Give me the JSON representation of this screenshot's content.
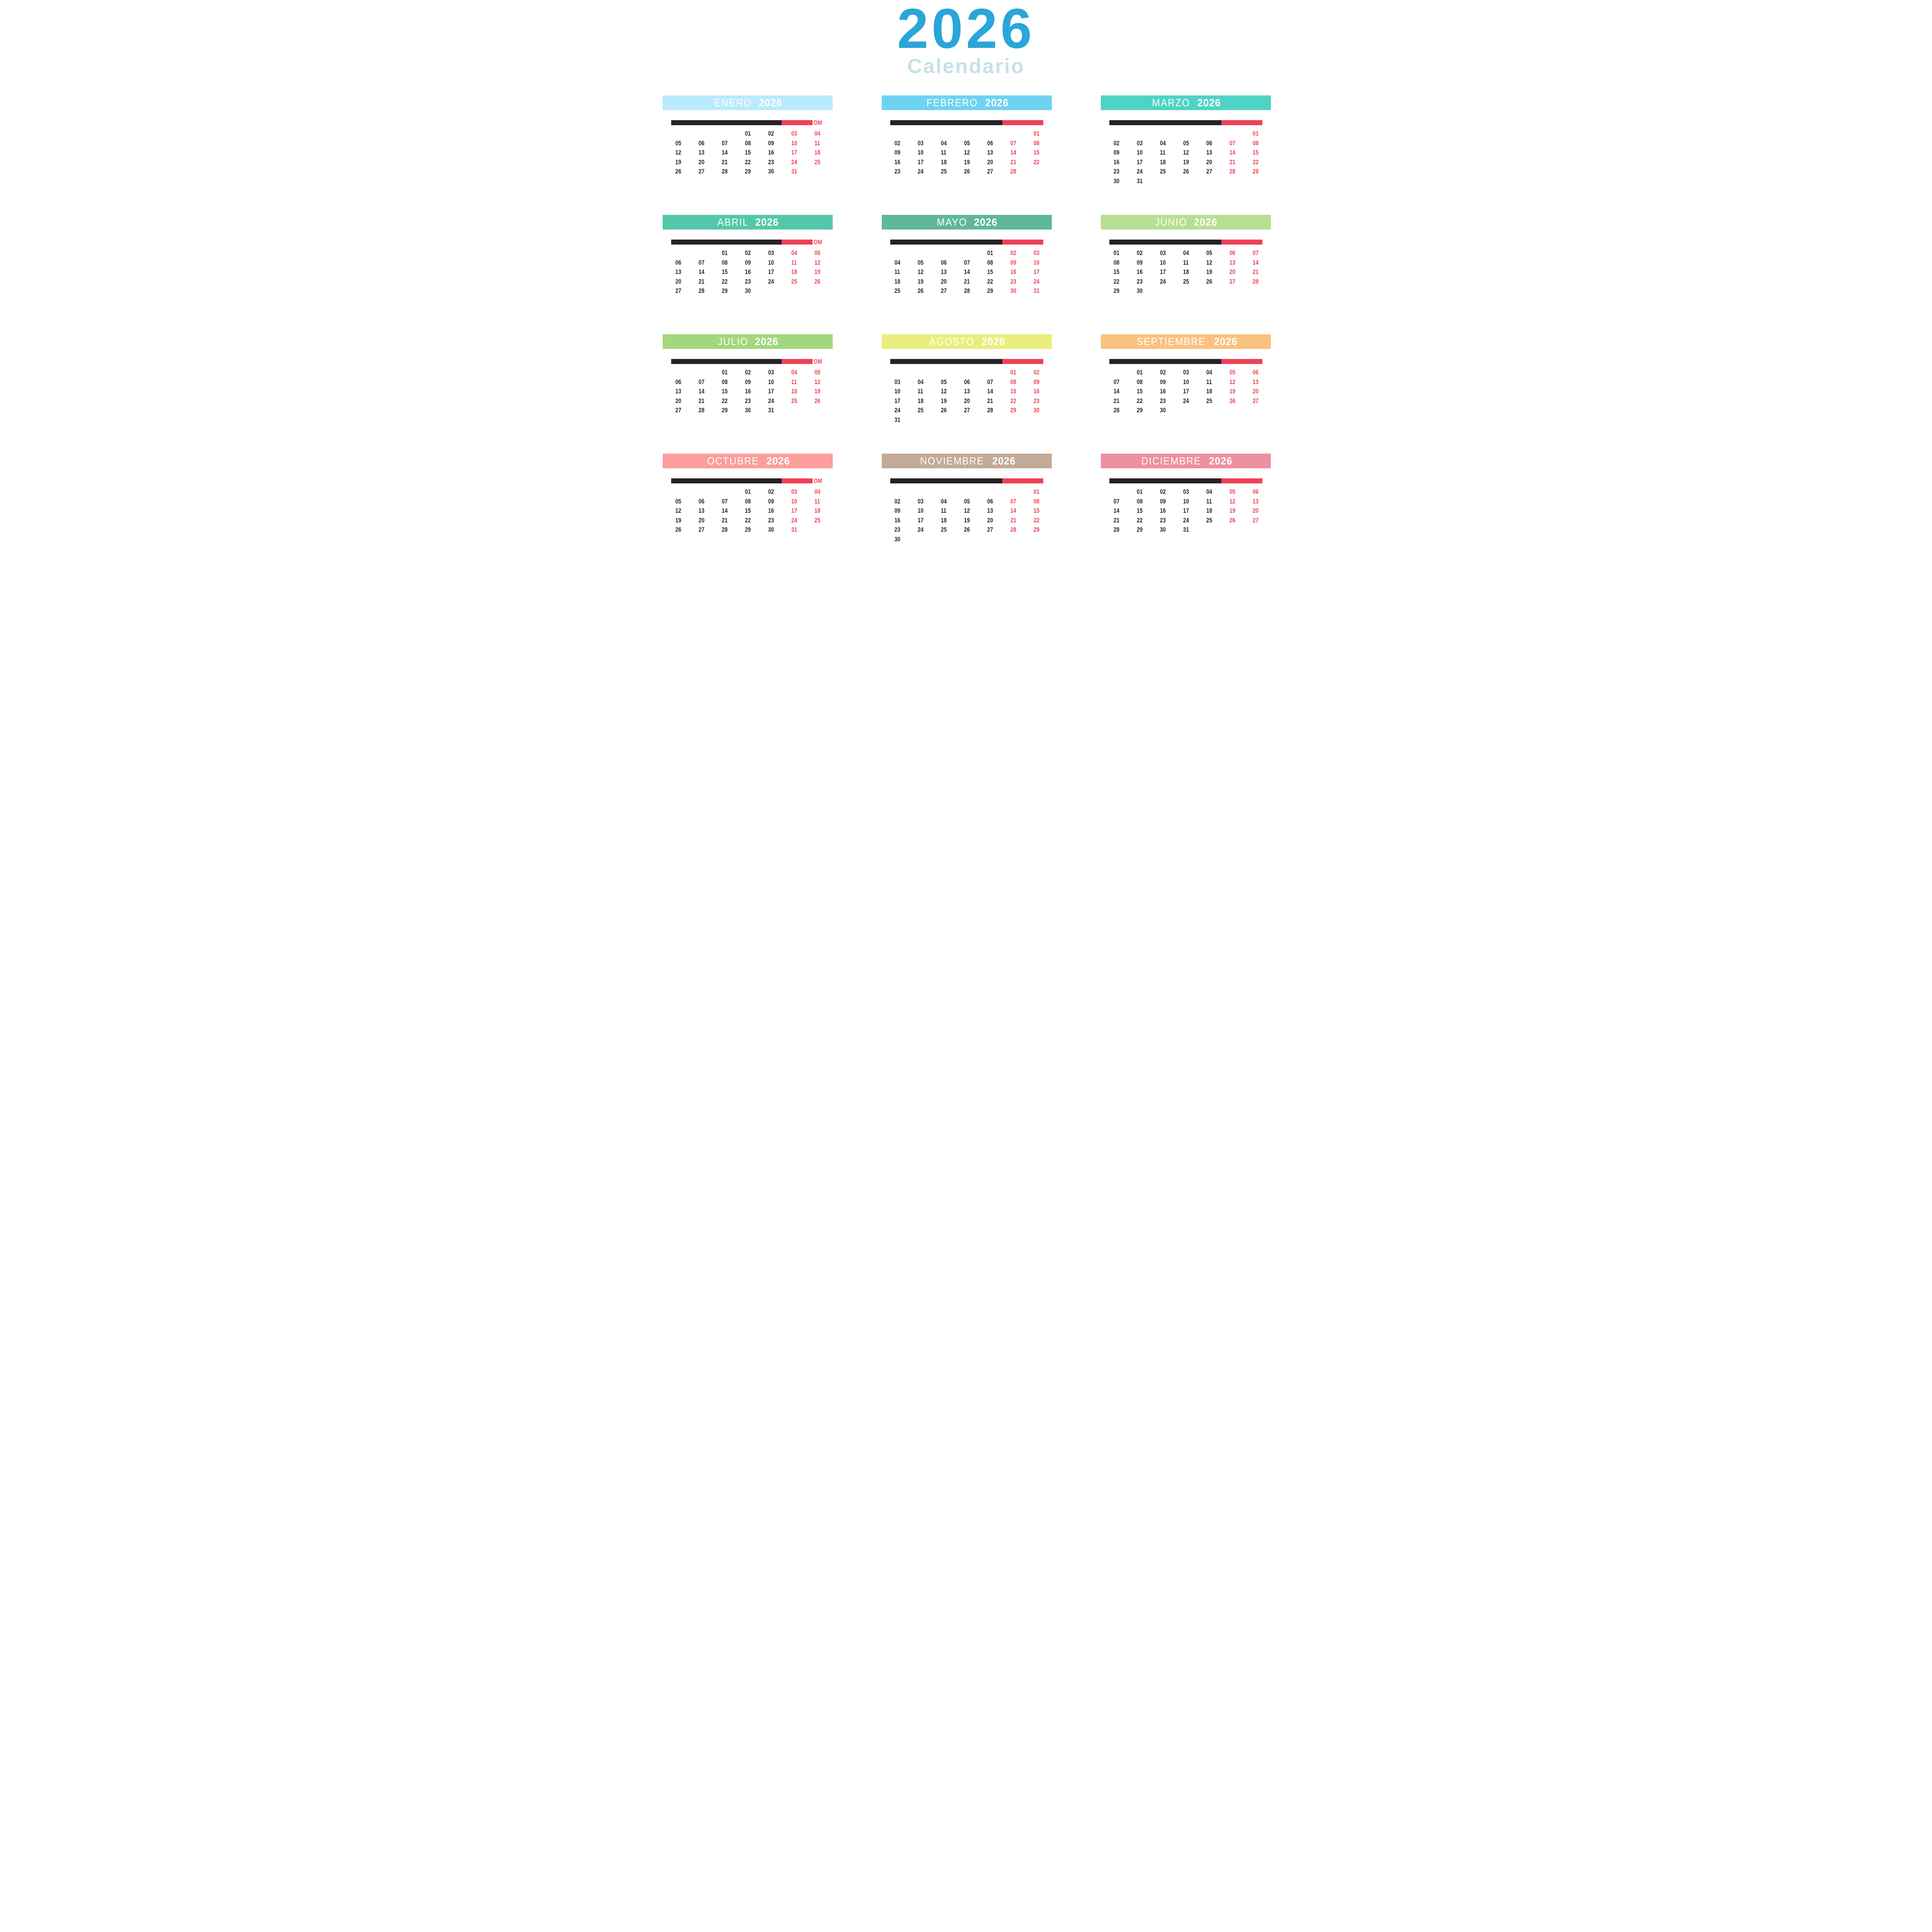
{
  "title": {
    "year": "2026",
    "subtitle": "Calendario"
  },
  "colors": {
    "title_year": "#2aa6d8",
    "title_subtitle": "#c7e1e5",
    "ink": "#29242a",
    "bar_black": "#262126",
    "weekend_red": "#ee4156",
    "header_text": "#ffffff",
    "background": "#ffffff"
  },
  "weekday_bar": {
    "overflow_label": "OM"
  },
  "months": [
    {
      "name": "ENERO",
      "year": "2026",
      "header_color": "#b9eafd",
      "bar_overflow": true,
      "weeks": [
        [
          "",
          "",
          "",
          "01",
          "02",
          "03",
          "04"
        ],
        [
          "05",
          "06",
          "07",
          "08",
          "09",
          "10",
          "11"
        ],
        [
          "12",
          "13",
          "14",
          "15",
          "16",
          "17",
          "18"
        ],
        [
          "19",
          "20",
          "21",
          "22",
          "23",
          "24",
          "25"
        ],
        [
          "26",
          "27",
          "28",
          "29",
          "30",
          "31",
          ""
        ]
      ]
    },
    {
      "name": "FEBRERO",
      "year": "2026",
      "header_color": "#6ed3f1",
      "bar_overflow": false,
      "weeks": [
        [
          "",
          "",
          "",
          "",
          "",
          "",
          "01"
        ],
        [
          "02",
          "03",
          "04",
          "05",
          "06",
          "07",
          "08"
        ],
        [
          "09",
          "10",
          "11",
          "12",
          "13",
          "14",
          "15"
        ],
        [
          "16",
          "17",
          "18",
          "19",
          "20",
          "21",
          "22"
        ],
        [
          "23",
          "24",
          "25",
          "26",
          "27",
          "28",
          ""
        ]
      ]
    },
    {
      "name": "MARZO",
      "year": "2026",
      "header_color": "#4fd3c6",
      "bar_overflow": false,
      "weeks": [
        [
          "",
          "",
          "",
          "",
          "",
          "",
          "01"
        ],
        [
          "02",
          "03",
          "04",
          "05",
          "06",
          "07",
          "08"
        ],
        [
          "09",
          "10",
          "11",
          "12",
          "13",
          "14",
          "15"
        ],
        [
          "16",
          "17",
          "18",
          "19",
          "20",
          "21",
          "22"
        ],
        [
          "23",
          "24",
          "25",
          "26",
          "27",
          "28",
          "29"
        ],
        [
          "30",
          "31",
          "",
          "",
          "",
          "",
          ""
        ]
      ]
    },
    {
      "name": "ABRIL",
      "year": "2026",
      "header_color": "#53c8a8",
      "bar_overflow": true,
      "weeks": [
        [
          "",
          "",
          "01",
          "02",
          "03",
          "04",
          "05"
        ],
        [
          "06",
          "07",
          "08",
          "09",
          "10",
          "11",
          "12"
        ],
        [
          "13",
          "14",
          "15",
          "16",
          "17",
          "18",
          "19"
        ],
        [
          "20",
          "21",
          "22",
          "23",
          "24",
          "25",
          "26"
        ],
        [
          "27",
          "28",
          "29",
          "30",
          "",
          "",
          ""
        ]
      ]
    },
    {
      "name": "MAYO",
      "year": "2026",
      "header_color": "#5fb896",
      "bar_overflow": false,
      "weeks": [
        [
          "",
          "",
          "",
          "",
          "01",
          "02",
          "03"
        ],
        [
          "04",
          "05",
          "06",
          "07",
          "08",
          "09",
          "10"
        ],
        [
          "11",
          "12",
          "13",
          "14",
          "15",
          "16",
          "17"
        ],
        [
          "18",
          "19",
          "20",
          "21",
          "22",
          "23",
          "24"
        ],
        [
          "25",
          "26",
          "27",
          "28",
          "29",
          "30",
          "31"
        ]
      ]
    },
    {
      "name": "JUNIO",
      "year": "2026",
      "header_color": "#b7de91",
      "bar_overflow": false,
      "weeks": [
        [
          "01",
          "02",
          "03",
          "04",
          "05",
          "06",
          "07"
        ],
        [
          "08",
          "09",
          "10",
          "11",
          "12",
          "13",
          "14"
        ],
        [
          "15",
          "16",
          "17",
          "18",
          "19",
          "20",
          "21"
        ],
        [
          "22",
          "23",
          "24",
          "25",
          "26",
          "27",
          "28"
        ],
        [
          "29",
          "30",
          "",
          "",
          "",
          "",
          ""
        ]
      ]
    },
    {
      "name": "JULIO",
      "year": "2026",
      "header_color": "#a2d87b",
      "bar_overflow": true,
      "weeks": [
        [
          "",
          "",
          "01",
          "02",
          "03",
          "04",
          "05"
        ],
        [
          "06",
          "07",
          "08",
          "09",
          "10",
          "11",
          "12"
        ],
        [
          "13",
          "14",
          "15",
          "16",
          "17",
          "18",
          "19"
        ],
        [
          "20",
          "21",
          "22",
          "23",
          "24",
          "25",
          "26"
        ],
        [
          "27",
          "28",
          "29",
          "30",
          "31",
          "",
          ""
        ]
      ]
    },
    {
      "name": "AGOSTO",
      "year": "2026",
      "header_color": "#e9ee7d",
      "bar_overflow": false,
      "weeks": [
        [
          "",
          "",
          "",
          "",
          "",
          "01",
          "02"
        ],
        [
          "03",
          "04",
          "05",
          "06",
          "07",
          "08",
          "09"
        ],
        [
          "10",
          "11",
          "12",
          "13",
          "14",
          "15",
          "16"
        ],
        [
          "17",
          "18",
          "19",
          "20",
          "21",
          "22",
          "23"
        ],
        [
          "24",
          "25",
          "26",
          "27",
          "28",
          "29",
          "30"
        ],
        [
          "31",
          "",
          "",
          "",
          "",
          "",
          ""
        ]
      ]
    },
    {
      "name": "SEPTIEMBRE",
      "year": "2026",
      "header_color": "#fbc180",
      "bar_overflow": false,
      "weeks": [
        [
          "",
          "01",
          "02",
          "03",
          "04",
          "05",
          "06"
        ],
        [
          "07",
          "08",
          "09",
          "10",
          "11",
          "12",
          "13"
        ],
        [
          "14",
          "15",
          "16",
          "17",
          "18",
          "19",
          "20"
        ],
        [
          "21",
          "22",
          "23",
          "24",
          "25",
          "26",
          "27"
        ],
        [
          "28",
          "29",
          "30",
          "",
          "",
          "",
          ""
        ]
      ]
    },
    {
      "name": "OCTUBRE",
      "year": "2026",
      "header_color": "#fb9e9c",
      "bar_overflow": true,
      "weeks": [
        [
          "",
          "",
          "",
          "01",
          "02",
          "03",
          "04"
        ],
        [
          "05",
          "06",
          "07",
          "08",
          "09",
          "10",
          "11"
        ],
        [
          "12",
          "13",
          "14",
          "15",
          "16",
          "17",
          "18"
        ],
        [
          "19",
          "20",
          "21",
          "22",
          "23",
          "24",
          "25"
        ],
        [
          "26",
          "27",
          "28",
          "29",
          "30",
          "31",
          ""
        ]
      ]
    },
    {
      "name": "NOVIEMBRE",
      "year": "2026",
      "header_color": "#c2aa97",
      "bar_overflow": false,
      "weeks": [
        [
          "",
          "",
          "",
          "",
          "",
          "",
          "01"
        ],
        [
          "02",
          "03",
          "04",
          "05",
          "06",
          "07",
          "08"
        ],
        [
          "09",
          "10",
          "11",
          "12",
          "13",
          "14",
          "15"
        ],
        [
          "16",
          "17",
          "18",
          "19",
          "20",
          "21",
          "22"
        ],
        [
          "23",
          "24",
          "25",
          "26",
          "27",
          "28",
          "29"
        ],
        [
          "30",
          "",
          "",
          "",
          "",
          "",
          ""
        ]
      ]
    },
    {
      "name": "DICIEMBRE",
      "year": "2026",
      "header_color": "#ed909f",
      "bar_overflow": false,
      "weeks": [
        [
          "",
          "01",
          "02",
          "03",
          "04",
          "05",
          "06"
        ],
        [
          "07",
          "08",
          "09",
          "10",
          "11",
          "12",
          "13"
        ],
        [
          "14",
          "15",
          "16",
          "17",
          "18",
          "19",
          "20"
        ],
        [
          "21",
          "22",
          "23",
          "24",
          "25",
          "26",
          "27"
        ],
        [
          "28",
          "29",
          "30",
          "31",
          "",
          "",
          ""
        ]
      ]
    }
  ]
}
